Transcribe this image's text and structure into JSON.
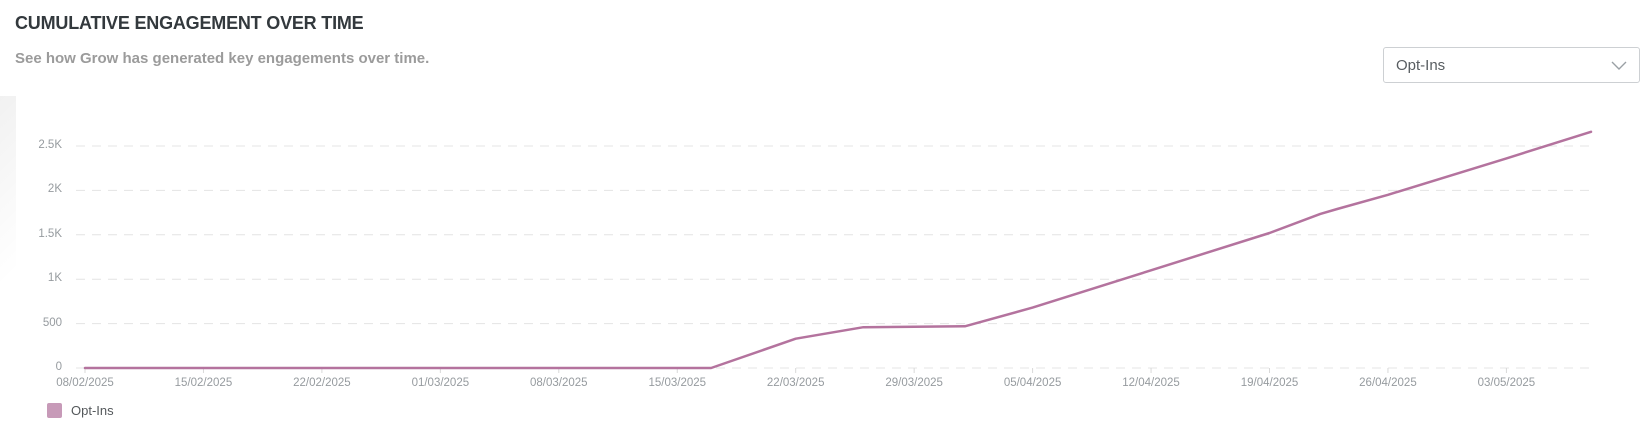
{
  "header": {
    "title": "CUMULATIVE ENGAGEMENT OVER TIME",
    "subtitle": "See how Grow has generated key engagements over time."
  },
  "controls": {
    "metric_dropdown": {
      "value": "Opt-Ins",
      "icon": "chevron-down-icon"
    }
  },
  "legend": {
    "position": "bottom-left",
    "items": [
      {
        "label": "Opt-Ins",
        "color": "#c79ab8"
      }
    ]
  },
  "colors": {
    "series_line": "#b4739e",
    "gridline": "#e4e4e4",
    "tick_mark": "#d9d9d9",
    "axis_text": "#969b9f"
  },
  "chart_data": {
    "type": "line",
    "title": "Cumulative Engagement Over Time",
    "grid": "horizontal-dashed",
    "ylim": [
      0,
      2800
    ],
    "x_axis": {
      "tick_interval_days": 7,
      "ticks": [
        {
          "label": "08/02/2025",
          "day": 0
        },
        {
          "label": "15/02/2025",
          "day": 7
        },
        {
          "label": "22/02/2025",
          "day": 14
        },
        {
          "label": "01/03/2025",
          "day": 21
        },
        {
          "label": "08/03/2025",
          "day": 28
        },
        {
          "label": "15/03/2025",
          "day": 35
        },
        {
          "label": "22/03/2025",
          "day": 42
        },
        {
          "label": "29/03/2025",
          "day": 49
        },
        {
          "label": "05/04/2025",
          "day": 56
        },
        {
          "label": "12/04/2025",
          "day": 63
        },
        {
          "label": "19/04/2025",
          "day": 70
        },
        {
          "label": "26/04/2025",
          "day": 77
        },
        {
          "label": "03/05/2025",
          "day": 84
        }
      ]
    },
    "y_axis": {
      "ticks": [
        {
          "label": "0",
          "value": 0
        },
        {
          "label": "500",
          "value": 500
        },
        {
          "label": "1K",
          "value": 1000
        },
        {
          "label": "1.5K",
          "value": 1500
        },
        {
          "label": "2K",
          "value": 2000
        },
        {
          "label": "2.5K",
          "value": 2500
        }
      ]
    },
    "series": [
      {
        "name": "Opt-Ins",
        "color": "#b4739e",
        "points": [
          {
            "date": "08/02/2025",
            "day": 0,
            "value": 0
          },
          {
            "date": "15/02/2025",
            "day": 7,
            "value": 0
          },
          {
            "date": "22/02/2025",
            "day": 14,
            "value": 0
          },
          {
            "date": "01/03/2025",
            "day": 21,
            "value": 0
          },
          {
            "date": "08/03/2025",
            "day": 28,
            "value": 0
          },
          {
            "date": "15/03/2025",
            "day": 35,
            "value": 0
          },
          {
            "date": "17/03/2025",
            "day": 37,
            "value": 0
          },
          {
            "date": "22/03/2025",
            "day": 42,
            "value": 330
          },
          {
            "date": "26/03/2025",
            "day": 46,
            "value": 460
          },
          {
            "date": "01/04/2025",
            "day": 52,
            "value": 470
          },
          {
            "date": "05/04/2025",
            "day": 56,
            "value": 680
          },
          {
            "date": "12/04/2025",
            "day": 63,
            "value": 1100
          },
          {
            "date": "19/04/2025",
            "day": 70,
            "value": 1520
          },
          {
            "date": "22/04/2025",
            "day": 73,
            "value": 1735
          },
          {
            "date": "23/04/2025",
            "day": 74,
            "value": 1790
          },
          {
            "date": "26/04/2025",
            "day": 77,
            "value": 1950
          },
          {
            "date": "03/05/2025",
            "day": 84,
            "value": 2360
          },
          {
            "date": "08/05/2025",
            "day": 89,
            "value": 2660
          }
        ]
      }
    ]
  }
}
